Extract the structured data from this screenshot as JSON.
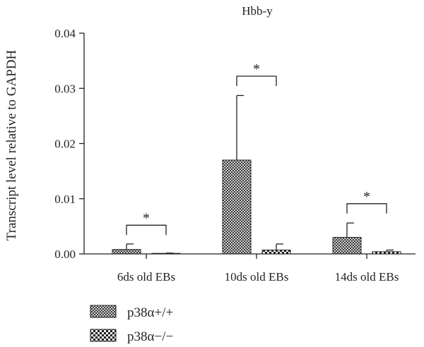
{
  "chart_data": {
    "type": "bar",
    "title": "Hbb-y",
    "xlabel": "",
    "ylabel": "Transcript level relative to GAPDH",
    "ylim": [
      0,
      0.04
    ],
    "yticks": [
      "0.00",
      "0.01",
      "0.02",
      "0.03",
      "0.04"
    ],
    "ytick_values": [
      0,
      0.01,
      0.02,
      0.03,
      0.04
    ],
    "categories": [
      "6ds old EBs",
      "10ds old EBs",
      "14ds old EBs"
    ],
    "series": [
      {
        "name": "p38α+/+",
        "pattern": "crosshatch",
        "values": [
          0.0008,
          0.017,
          0.003
        ],
        "error_upper": [
          0.001,
          0.0117,
          0.0026
        ]
      },
      {
        "name": "p38α−/−",
        "pattern": "checker",
        "values": [
          0.0001,
          0.0007,
          0.0004
        ],
        "error_upper": [
          5e-05,
          0.0011,
          0.0003
        ]
      }
    ],
    "significance": [
      {
        "category": "6ds old EBs",
        "label": "*",
        "level": 0.0052
      },
      {
        "category": "10ds old EBs",
        "label": "*",
        "level": 0.0322
      },
      {
        "category": "14ds old EBs",
        "label": "*",
        "level": 0.0091
      }
    ],
    "grid": false,
    "legend_position": "bottom-left"
  },
  "colors": {
    "axis": "#222222",
    "bar_fill": "#ffffff",
    "pattern_ink": "#1a1a1a"
  }
}
